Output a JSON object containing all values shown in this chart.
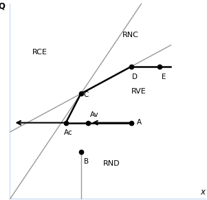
{
  "points": {
    "A": [
      6.5,
      4.5
    ],
    "Av": [
      4.2,
      4.5
    ],
    "Ac": [
      3.0,
      4.5
    ],
    "B": [
      3.8,
      2.8
    ],
    "C": [
      3.8,
      6.2
    ],
    "D": [
      6.5,
      7.8
    ],
    "E": [
      8.0,
      7.8
    ]
  },
  "xlim": [
    0,
    10.5
  ],
  "ylim": [
    0,
    11.5
  ],
  "bg_color": "#ffffff",
  "line_color": "#000000",
  "gray_line_color": "#999999",
  "label_fontsize": 7.5,
  "region_fontsize": 8
}
